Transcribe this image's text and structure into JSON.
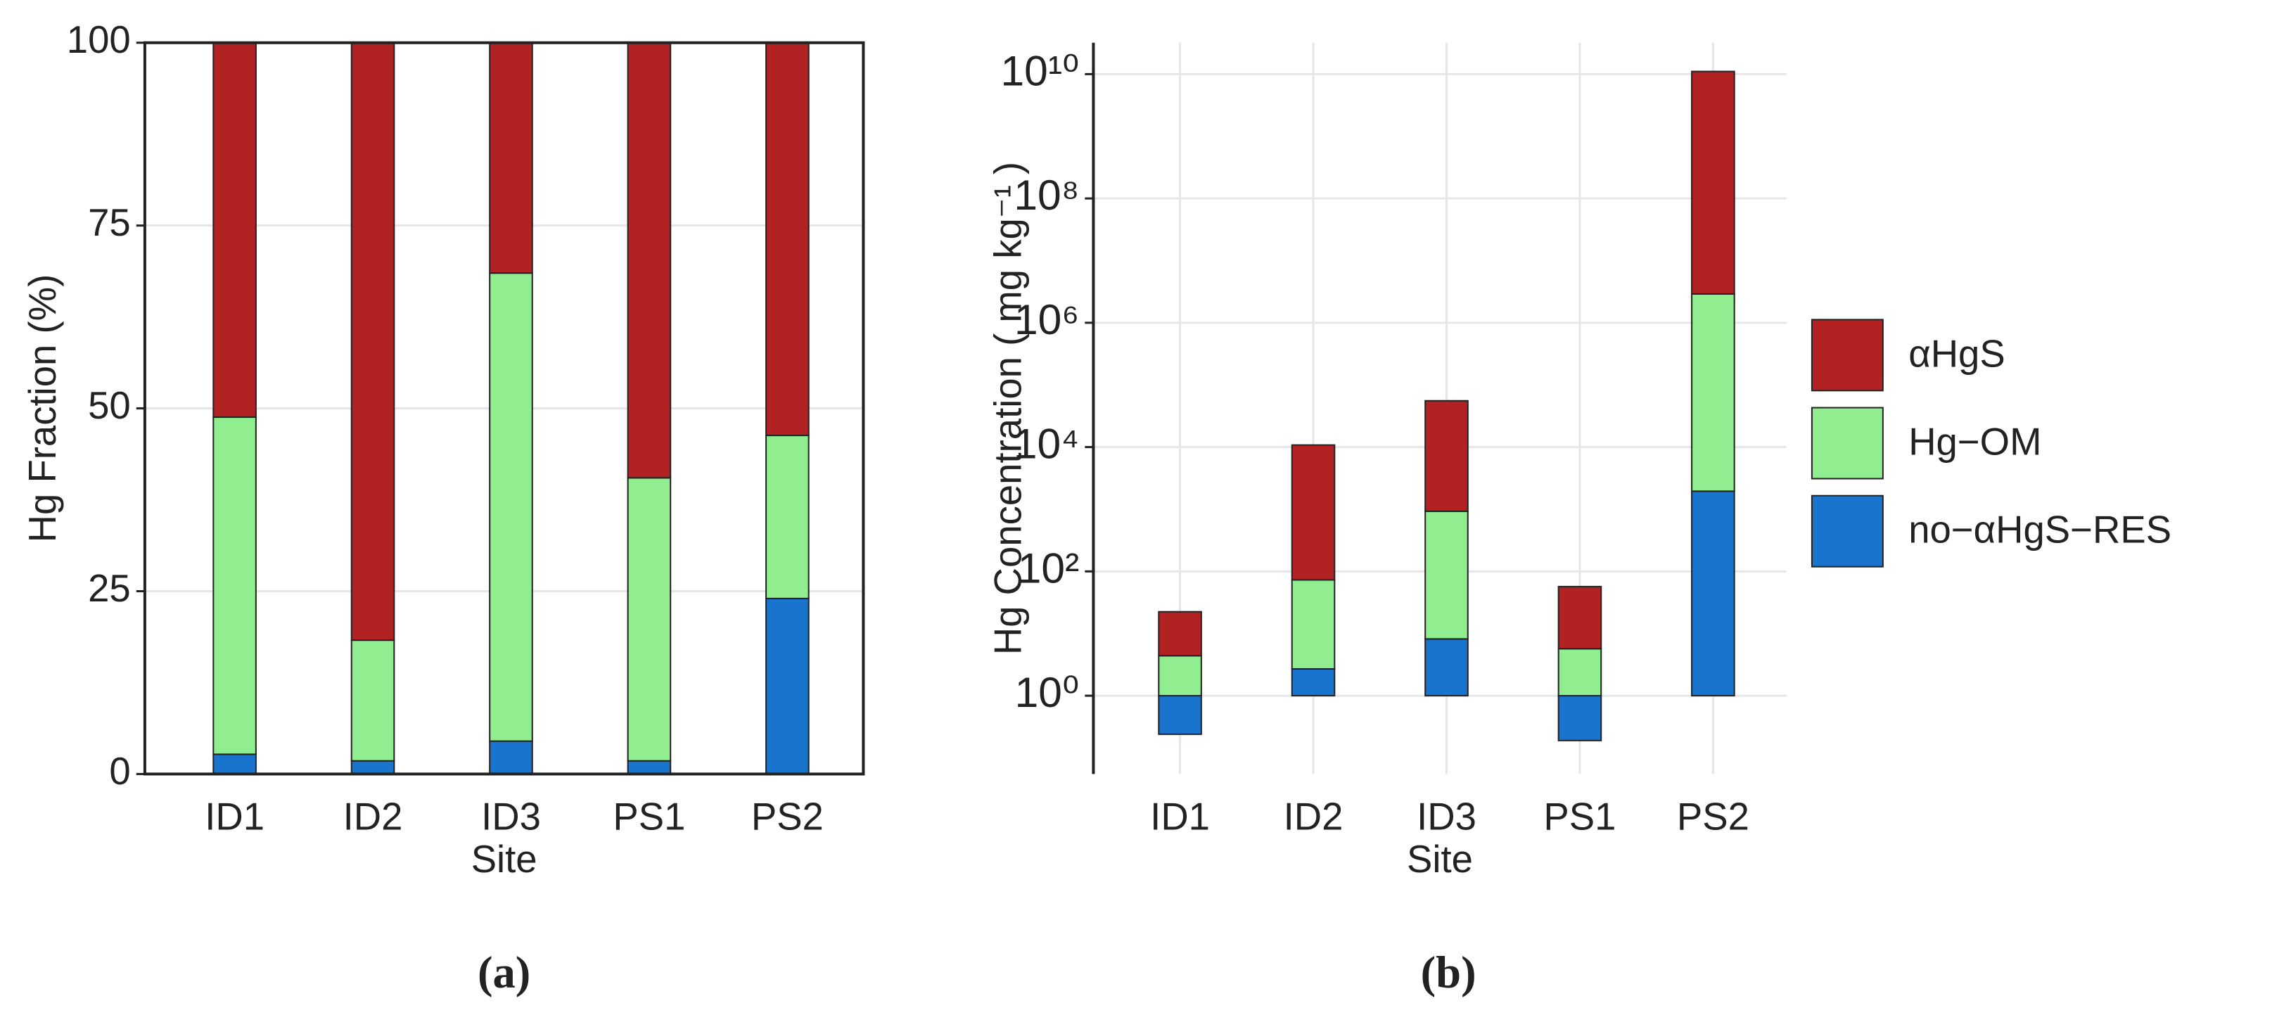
{
  "chart_data": [
    {
      "type": "bar",
      "stacked": true,
      "title": "(a)",
      "x_label": "Site",
      "y_label": "Hg Fraction (%)",
      "categories": [
        "ID1",
        "ID2",
        "ID3",
        "PS1",
        "PS2"
      ],
      "series": [
        {
          "color": "#b22222",
          "values": [
            51.2,
            81.7,
            31.5,
            59.5,
            53.7
          ]
        },
        {
          "color": "#90ee90",
          "values": [
            46.1,
            16.5,
            64,
            38.7,
            22.3
          ]
        },
        {
          "color": "#1874cd",
          "values": [
            2.7,
            1.8,
            4.5,
            1.8,
            24
          ]
        }
      ],
      "ylim": [
        0,
        100
      ],
      "yticks": [
        0,
        25,
        50,
        75,
        100
      ],
      "grid": true,
      "panel_border": true
    },
    {
      "type": "bar",
      "stacked": true,
      "title": "(b)",
      "x_label": "Site",
      "y_label": "Hg Concentration ( mg kg⁻¹ )",
      "categories": [
        "ID1",
        "ID2",
        "ID3",
        "PS1",
        "PS2"
      ],
      "series": [
        {
          "name": "αHgS",
          "color": "#b22222",
          "values": [
            5.1,
            148,
            60,
            10,
            3800
          ]
        },
        {
          "name": "Hg−OM",
          "color": "#90ee90",
          "values": [
            4.4,
            27,
            113,
            5.7,
            1490
          ]
        },
        {
          "name": "no−αHgS−RES",
          "color": "#1874cd",
          "values": [
            0.24,
            2.7,
            8.2,
            0.19,
            1950
          ]
        }
      ],
      "log": true,
      "ylim": [
        0.055,
        32000000000
      ],
      "yticks": [
        {
          "value": 1,
          "label": "10⁰"
        },
        {
          "value": 100,
          "label": "10²"
        },
        {
          "value": 10000,
          "label": "10⁴"
        },
        {
          "value": 1000000,
          "label": "10⁶"
        },
        {
          "value": 100000000,
          "label": "10⁸"
        },
        {
          "value": 10000000000,
          "label": "10¹⁰"
        }
      ],
      "grid": true,
      "panel_border": false,
      "legend": "right"
    }
  ]
}
